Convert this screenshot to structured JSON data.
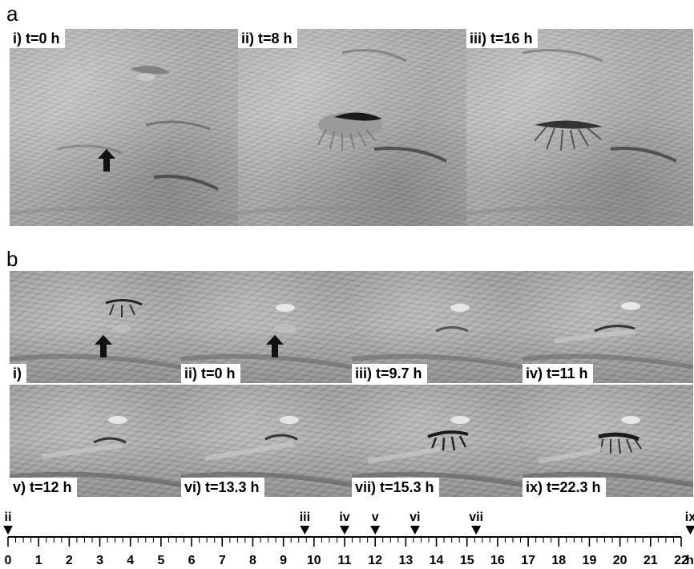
{
  "panel_a": {
    "letter": "a",
    "frames": [
      {
        "label": "i) t=0 h"
      },
      {
        "label": "ii) t=8 h"
      },
      {
        "label": "iii) t=16 h"
      }
    ]
  },
  "panel_b": {
    "letter": "b",
    "frames": [
      {
        "label": "i)"
      },
      {
        "label": "ii) t=0 h"
      },
      {
        "label": "iii) t=9.7 h"
      },
      {
        "label": "iv) t=11 h"
      },
      {
        "label": "v) t=12 h"
      },
      {
        "label": "vi) t=13.3 h"
      },
      {
        "label": "vii) t=15.3 h"
      },
      {
        "label": "ix) t=22.3 h"
      }
    ]
  },
  "timeline": {
    "unit": "h",
    "min": 0,
    "max": 22,
    "tick_labels": [
      "0",
      "1",
      "2",
      "3",
      "4",
      "5",
      "6",
      "7",
      "8",
      "9",
      "10",
      "11",
      "12",
      "13",
      "14",
      "15",
      "16",
      "17",
      "18",
      "19",
      "20",
      "21",
      "22"
    ],
    "markers": [
      {
        "label": "ii",
        "t": 0
      },
      {
        "label": "iii",
        "t": 9.7
      },
      {
        "label": "iv",
        "t": 11
      },
      {
        "label": "v",
        "t": 12
      },
      {
        "label": "vi",
        "t": 13.3
      },
      {
        "label": "vii",
        "t": 15.3
      },
      {
        "label": "ix",
        "t": 22.3
      }
    ]
  }
}
